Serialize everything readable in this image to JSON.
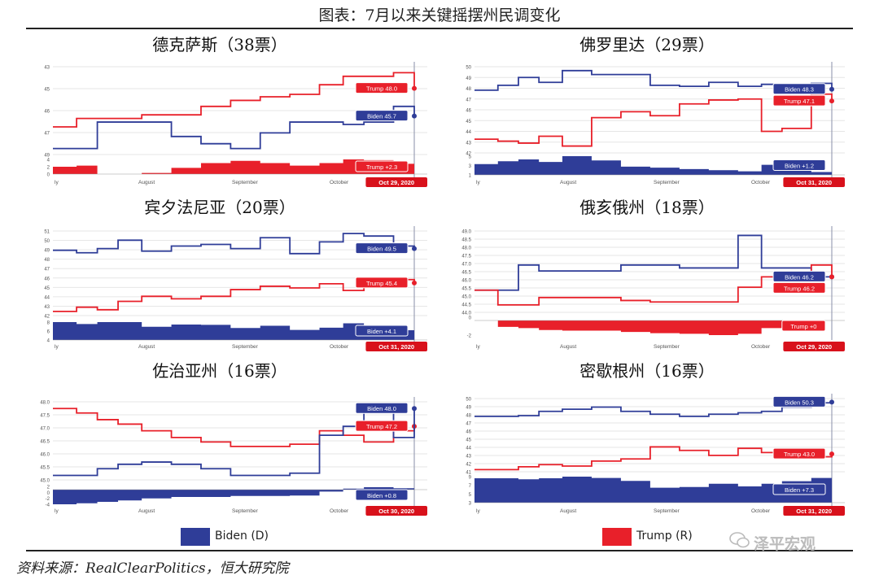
{
  "page": {
    "title": "图表：7月以来关键摇摆州民调变化",
    "legend": {
      "biden": "Biden (D)",
      "trump": "Trump (R)"
    },
    "source": "资料来源：RealClearPolitics，恒大研究院",
    "watermark": "泽平宏观",
    "colors": {
      "biden": "#2f3d98",
      "trump": "#e8202a",
      "grid": "#e6e6e6",
      "date_box": "#d8111b"
    }
  },
  "chart_data": [
    {
      "type": "line",
      "title": "德克萨斯（38票）",
      "x": [
        0,
        8,
        15,
        22,
        30,
        40,
        50,
        60,
        70,
        80,
        90,
        98,
        105,
        115,
        122
      ],
      "x_tick_labels": [
        "ly",
        "August",
        "September",
        "October"
      ],
      "series": [
        {
          "name": "Trump",
          "values": [
            44.8,
            45.5,
            45.5,
            45.5,
            45.8,
            45.8,
            46.5,
            47.0,
            47.3,
            47.5,
            48.3,
            49.0,
            49.0,
            49.3,
            48.0
          ]
        },
        {
          "name": "Biden",
          "values": [
            43.0,
            43.0,
            45.2,
            45.2,
            45.2,
            44.0,
            43.4,
            43.0,
            44.3,
            45.2,
            45.2,
            45.0,
            45.2,
            46.5,
            45.7
          ]
        }
      ],
      "spread": [
        2.0,
        2.3,
        0.0,
        0.0,
        0.3,
        1.7,
        3.0,
        3.6,
        3.0,
        2.3,
        3.0,
        4.0,
        3.8,
        2.8,
        2.3
      ],
      "y_ticks": [
        "43",
        "45",
        "46",
        "47",
        "49"
      ],
      "spread_ticks": [
        "4",
        "2",
        "0"
      ],
      "ylim": [
        42.5,
        49.8
      ],
      "end_labels": {
        "trump": "Trump 48.0",
        "biden": "Biden 45.7",
        "spread": "Trump +2.3"
      },
      "date": "Oct 29, 2020"
    },
    {
      "type": "line",
      "title": "佛罗里达（29票）",
      "x": [
        0,
        8,
        15,
        22,
        30,
        40,
        50,
        60,
        70,
        80,
        90,
        98,
        105,
        115,
        122
      ],
      "x_tick_labels": [
        "ly",
        "August",
        "September",
        "October"
      ],
      "series": [
        {
          "name": "Biden",
          "values": [
            48.2,
            48.7,
            49.5,
            49.0,
            50.2,
            49.8,
            49.8,
            48.7,
            48.6,
            49.0,
            48.6,
            48.8,
            48.4,
            48.9,
            48.3
          ]
        },
        {
          "name": "Trump",
          "values": [
            43.2,
            43.0,
            42.8,
            43.5,
            42.5,
            45.4,
            46.0,
            45.6,
            46.8,
            47.2,
            47.3,
            44.0,
            44.3,
            47.8,
            47.1
          ]
        }
      ],
      "spread": [
        3.0,
        3.8,
        4.3,
        3.6,
        5.2,
        4.0,
        2.3,
        2.0,
        1.6,
        1.3,
        1.0,
        2.8,
        2.0,
        0.8,
        1.2
      ],
      "y_ticks": [
        "50",
        "49",
        "48",
        "47",
        "46",
        "45",
        "44",
        "43",
        "42"
      ],
      "spread_ticks": [
        "5",
        "3",
        "1"
      ],
      "ylim": [
        41.8,
        50.6
      ],
      "end_labels": {
        "trump": "Trump 47.1",
        "biden": "Biden 48.3",
        "spread": "Biden +1.2"
      },
      "date": "Oct 31, 2020"
    },
    {
      "type": "line",
      "title": "宾夕法尼亚（20票）",
      "x": [
        0,
        8,
        15,
        22,
        30,
        40,
        50,
        60,
        70,
        80,
        90,
        98,
        105,
        115,
        122
      ],
      "x_tick_labels": [
        "ly",
        "August",
        "September",
        "October"
      ],
      "series": [
        {
          "name": "Biden",
          "values": [
            49.3,
            49.0,
            49.5,
            50.5,
            49.2,
            49.8,
            50.0,
            49.5,
            50.8,
            48.9,
            50.3,
            51.3,
            51.0,
            49.8,
            49.5
          ]
        },
        {
          "name": "Trump",
          "values": [
            42.0,
            42.5,
            42.2,
            43.2,
            43.8,
            43.5,
            43.8,
            44.6,
            45.0,
            44.8,
            45.3,
            44.5,
            45.0,
            45.8,
            45.4
          ]
        }
      ],
      "spread": [
        7.3,
        6.5,
        7.3,
        7.3,
        5.4,
        6.3,
        6.2,
        4.9,
        5.8,
        4.1,
        5.0,
        6.8,
        6.0,
        4.0,
        4.1
      ],
      "y_ticks": [
        "51",
        "50",
        "49",
        "48",
        "47",
        "46",
        "45",
        "44",
        "43",
        "42"
      ],
      "spread_ticks": [
        "8",
        "6",
        "4"
      ],
      "ylim": [
        41.5,
        51.6
      ],
      "end_labels": {
        "trump": "Trump 45.4",
        "biden": "Biden 49.5",
        "spread": "Biden +4.1"
      },
      "date": "Oct 31, 2020"
    },
    {
      "type": "line",
      "title": "俄亥俄州（18票）",
      "x": [
        0,
        8,
        15,
        22,
        30,
        40,
        50,
        60,
        70,
        80,
        90,
        98,
        105,
        115,
        122
      ],
      "x_tick_labels": [
        "ly",
        "August",
        "September",
        "October"
      ],
      "series": [
        {
          "name": "Biden",
          "values": [
            45.3,
            45.3,
            47.0,
            46.6,
            46.6,
            46.6,
            47.0,
            47.0,
            46.8,
            46.8,
            49.0,
            46.8,
            46.8,
            46.2,
            46.2
          ]
        },
        {
          "name": "Trump",
          "values": [
            45.3,
            44.3,
            44.3,
            44.8,
            44.8,
            44.8,
            44.6,
            44.5,
            44.5,
            44.5,
            45.5,
            46.2,
            46.2,
            47.0,
            46.2
          ]
        }
      ],
      "spread": [
        0.0,
        -1.0,
        -1.2,
        -1.5,
        -1.6,
        -1.6,
        -1.8,
        -2.0,
        -2.1,
        -2.3,
        -2.1,
        -1.2,
        -0.4,
        0.0,
        0.0
      ],
      "y_ticks": [
        "49.0",
        "48.5",
        "48.0",
        "47.5",
        "47.0",
        "46.5",
        "46.0",
        "45.5",
        "45.0",
        "44.5",
        "44.0"
      ],
      "spread_ticks": [
        "0",
        "-2"
      ],
      "ylim": [
        43.8,
        49.3
      ],
      "end_labels": {
        "trump": "Trump 46.2",
        "biden": "Biden 46.2",
        "spread": "Trump +0"
      },
      "date": "Oct 29, 2020"
    },
    {
      "type": "line",
      "title": "佐治亚州（16票）",
      "x": [
        0,
        8,
        15,
        22,
        30,
        40,
        50,
        60,
        70,
        80,
        90,
        98,
        105,
        115,
        122
      ],
      "x_tick_labels": [
        "ly",
        "August",
        "September",
        "October"
      ],
      "series": [
        {
          "name": "Trump",
          "values": [
            48.0,
            47.8,
            47.5,
            47.3,
            47.0,
            46.7,
            46.5,
            46.3,
            46.3,
            46.4,
            47.0,
            46.8,
            46.5,
            47.0,
            47.2
          ]
        },
        {
          "name": "Biden",
          "values": [
            45.0,
            45.0,
            45.3,
            45.5,
            45.6,
            45.5,
            45.3,
            45.0,
            45.0,
            45.1,
            46.8,
            47.2,
            48.0,
            46.7,
            48.0
          ]
        }
      ],
      "spread": [
        -3.0,
        -2.8,
        -2.5,
        -2.2,
        -1.8,
        -1.5,
        -1.5,
        -1.3,
        -1.3,
        -1.2,
        -0.4,
        0.2,
        0.5,
        0.3,
        0.8
      ],
      "y_ticks": [
        "48.0",
        "47.5",
        "47.0",
        "46.5",
        "46.0",
        "45.5",
        "45.0"
      ],
      "spread_ticks": [
        "2",
        "0",
        "-2",
        "-4"
      ],
      "ylim": [
        44.8,
        48.3
      ],
      "end_labels": {
        "trump": "Trump 47.2",
        "biden": "Biden 48.0",
        "spread": "Biden +0.8"
      },
      "date": "Oct 30, 2020"
    },
    {
      "type": "line",
      "title": "密歇根州（16票）",
      "x": [
        0,
        8,
        15,
        22,
        30,
        40,
        50,
        60,
        70,
        80,
        90,
        98,
        105,
        115,
        122
      ],
      "x_tick_labels": [
        "ly",
        "August",
        "September",
        "October"
      ],
      "series": [
        {
          "name": "Biden",
          "values": [
            48.3,
            48.3,
            48.4,
            49.0,
            49.3,
            49.6,
            49.0,
            48.6,
            48.3,
            48.6,
            48.8,
            49.0,
            49.6,
            50.2,
            50.3
          ]
        },
        {
          "name": "Trump",
          "values": [
            40.8,
            40.8,
            41.2,
            41.5,
            41.3,
            42.0,
            42.3,
            44.0,
            43.5,
            42.8,
            43.8,
            43.2,
            43.0,
            42.6,
            43.0
          ]
        }
      ],
      "spread": [
        7.5,
        7.5,
        7.2,
        7.5,
        8.0,
        7.6,
        6.7,
        4.6,
        4.8,
        5.8,
        5.0,
        5.8,
        6.6,
        7.6,
        7.3
      ],
      "y_ticks": [
        "50",
        "49",
        "48",
        "47",
        "46",
        "45",
        "44",
        "43",
        "42",
        "41"
      ],
      "spread_ticks": [
        "9",
        "7",
        "5",
        "3"
      ],
      "ylim": [
        40.5,
        50.8
      ],
      "end_labels": {
        "trump": "Trump 43.0",
        "biden": "Biden 50.3",
        "spread": "Biden +7.3"
      },
      "date": "Oct 31, 2020"
    }
  ]
}
